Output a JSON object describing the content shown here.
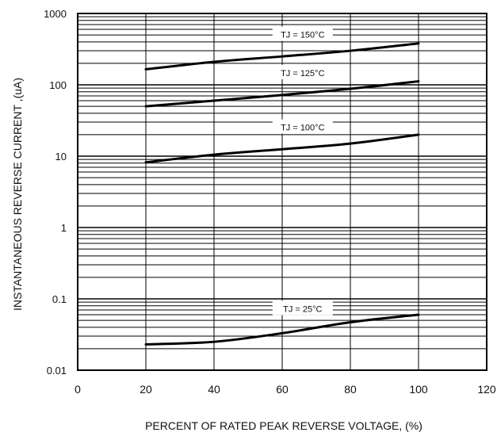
{
  "chart_data": {
    "type": "line",
    "xlabel": "PERCENT OF RATED PEAK REVERSE VOLTAGE, (%)",
    "ylabel": "INSTANTANEOUS REVERSE CURRENT ,(uA)",
    "xlim": [
      0,
      120
    ],
    "ylim": [
      0.01,
      1000
    ],
    "y_scale": "log",
    "grid": true,
    "x_ticks": [
      "0",
      "20",
      "40",
      "60",
      "80",
      "100",
      "120"
    ],
    "y_ticks": [
      "0.01",
      "0.1",
      "1",
      "10",
      "100",
      "1000"
    ],
    "series": [
      {
        "name": "TJ = 150°C",
        "x": [
          20,
          40,
          60,
          80,
          100
        ],
        "y": [
          165,
          210,
          250,
          300,
          380
        ]
      },
      {
        "name": "TJ = 125°C",
        "x": [
          20,
          40,
          60,
          80,
          100
        ],
        "y": [
          50,
          60,
          72,
          88,
          112
        ]
      },
      {
        "name": "TJ = 100°C",
        "x": [
          20,
          40,
          60,
          80,
          100
        ],
        "y": [
          8.2,
          10.5,
          12.5,
          15,
          20
        ]
      },
      {
        "name": "TJ = 25°C",
        "x": [
          20,
          40,
          60,
          80,
          100
        ],
        "y": [
          0.023,
          0.025,
          0.033,
          0.047,
          0.06
        ]
      }
    ]
  }
}
